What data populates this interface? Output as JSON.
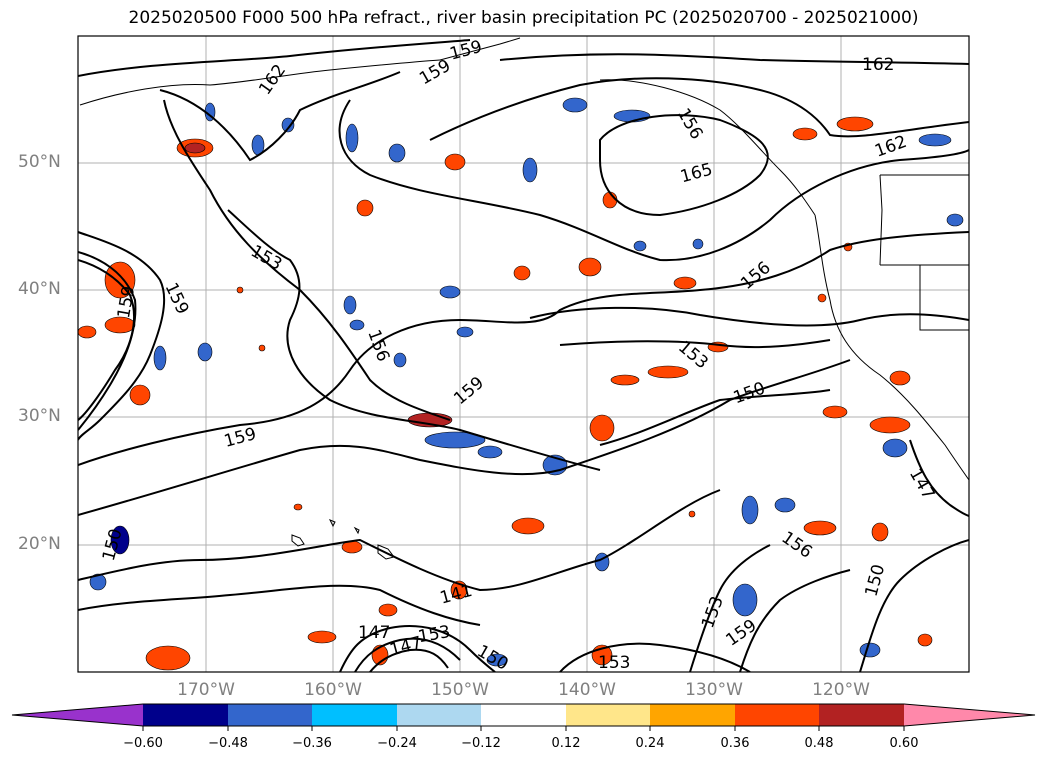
{
  "title": "2025020500 F000 500 hPa refract., river basin precipitation PC (2025020700 - 2025021000)",
  "lat_labels": [
    "50°N",
    "40°N",
    "30°N",
    "20°N"
  ],
  "lon_labels": [
    "170°W",
    "160°W",
    "150°W",
    "140°W",
    "130°W",
    "120°W"
  ],
  "contour_labels": [
    "162",
    "159",
    "159",
    "162",
    "165",
    "162",
    "153",
    "159",
    "156",
    "156",
    "159",
    "153",
    "159",
    "150",
    "147",
    "150",
    "156",
    "150",
    "153",
    "159",
    "147",
    "141",
    "147",
    "150",
    "153",
    "153",
    "159",
    "156"
  ],
  "colorbar": {
    "ticks": [
      "−0.60",
      "−0.48",
      "−0.36",
      "−0.24",
      "−0.12",
      "0.12",
      "0.24",
      "0.36",
      "0.48",
      "0.60"
    ],
    "colors": [
      "#9932cc",
      "#00008b",
      "#3366cc",
      "#00bfff",
      "#add8f0",
      "#ffffff",
      "#ffe68a",
      "#ffa500",
      "#ff4500",
      "#b22222",
      "#ff88aa"
    ]
  }
}
